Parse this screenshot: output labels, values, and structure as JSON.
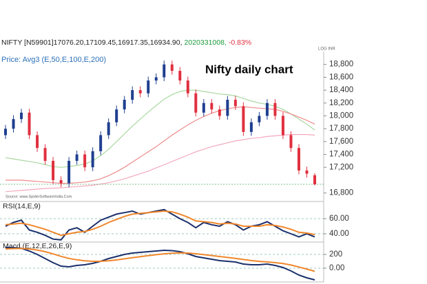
{
  "header": {
    "symbol": "NIFTY [N59901]17076.20,17109.45,16917.35,16934.90,",
    "volume": "2020331008,",
    "change": "-0.83%",
    "axis_note": "LOG INR",
    "source": "Source: www.SpiderSoftwareIndia.Com"
  },
  "chart_data": [
    {
      "type": "candlestick",
      "title": "Nifty daily chart",
      "subtitle": "Price: Avg3 (E,50,E,100,E,200)",
      "up_color": "#1f3f8f",
      "down_color": "#e0303f",
      "open": [
        17700,
        17800,
        17950,
        18050,
        17700,
        17500,
        17300,
        17000,
        16950,
        17300,
        17400,
        17200,
        17450,
        17700,
        17900,
        18100,
        18250,
        18400,
        18350,
        18550,
        18600,
        18800,
        18700,
        18550,
        18350,
        18050,
        18200,
        18100,
        18000,
        18250,
        18150,
        17750,
        17900,
        18000,
        18200,
        18000,
        17700,
        17500,
        17150,
        17076.2
      ],
      "high": [
        17860,
        18010,
        18110,
        18110,
        17760,
        17560,
        17360,
        17060,
        17360,
        17460,
        17460,
        17510,
        17760,
        17960,
        18160,
        18310,
        18460,
        18460,
        18610,
        18660,
        18860,
        18860,
        18760,
        18610,
        18410,
        18260,
        18260,
        18160,
        18310,
        18310,
        18210,
        17960,
        18060,
        18260,
        18260,
        18060,
        17760,
        17560,
        17210,
        17109.45
      ],
      "low": [
        17640,
        17740,
        17890,
        17640,
        17440,
        17240,
        16940,
        16890,
        16890,
        17240,
        17140,
        17140,
        17390,
        17640,
        17840,
        18040,
        18190,
        18290,
        18290,
        18490,
        18540,
        18640,
        18490,
        18290,
        17990,
        17990,
        18040,
        17940,
        17940,
        18090,
        17690,
        17690,
        17840,
        17940,
        17940,
        17640,
        17440,
        17090,
        17040,
        16917.35
      ],
      "close": [
        17800,
        17950,
        18050,
        17700,
        17500,
        17300,
        17000,
        16950,
        17300,
        17400,
        17200,
        17450,
        17700,
        17900,
        18100,
        18250,
        18400,
        18350,
        18550,
        18600,
        18800,
        18700,
        18550,
        18350,
        18050,
        18200,
        18100,
        18000,
        18250,
        18150,
        17750,
        17900,
        18000,
        18200,
        18000,
        17700,
        17500,
        17150,
        17100,
        16934.9
      ],
      "series": [
        {
          "name": "E,50",
          "color": "#a9d8a0",
          "values": [
            17350,
            17330,
            17310,
            17290,
            17270,
            17240,
            17210,
            17200,
            17210,
            17230,
            17250,
            17300,
            17380,
            17480,
            17600,
            17720,
            17840,
            17950,
            18060,
            18160,
            18260,
            18330,
            18380,
            18400,
            18400,
            18380,
            18360,
            18340,
            18330,
            18310,
            18270,
            18230,
            18200,
            18180,
            18150,
            18100,
            18030,
            17950,
            17870,
            17780
          ]
        },
        {
          "name": "E,100",
          "color": "#ee8a8a",
          "values": [
            17000,
            17000,
            17000,
            16990,
            16980,
            16970,
            16960,
            16950,
            16950,
            16960,
            16970,
            16990,
            17020,
            17070,
            17130,
            17200,
            17280,
            17360,
            17440,
            17520,
            17610,
            17700,
            17780,
            17860,
            17930,
            17990,
            18040,
            18080,
            18110,
            18130,
            18140,
            18130,
            18120,
            18110,
            18100,
            18070,
            18030,
            17980,
            17930,
            17870
          ]
        },
        {
          "name": "E,200",
          "color": "#f3a8bc",
          "values": [
            16820,
            16830,
            16840,
            16850,
            16860,
            16870,
            16875,
            16880,
            16890,
            16900,
            16910,
            16920,
            16940,
            16960,
            16990,
            17020,
            17060,
            17100,
            17140,
            17190,
            17240,
            17290,
            17340,
            17390,
            17440,
            17480,
            17520,
            17550,
            17580,
            17610,
            17630,
            17650,
            17660,
            17680,
            17690,
            17700,
            17710,
            17710,
            17710,
            17700
          ]
        }
      ],
      "ylim": [
        16700,
        19000
      ],
      "yticks": [
        {
          "value": 16800,
          "label": "16,800"
        },
        {
          "value": 17200,
          "label": "17,200"
        },
        {
          "value": 17400,
          "label": "17,400"
        },
        {
          "value": 17600,
          "label": "17,600"
        },
        {
          "value": 17800,
          "label": "17,800"
        },
        {
          "value": 18000,
          "label": "18,000"
        },
        {
          "value": 18200,
          "label": "18,200"
        },
        {
          "value": 18400,
          "label": "18,400"
        },
        {
          "value": 18600,
          "label": "18,600"
        },
        {
          "value": 18800,
          "label": "18,800"
        }
      ]
    },
    {
      "type": "line",
      "title": "RSI(14,E,9)",
      "series": [
        {
          "name": "RSI",
          "color": "#1a2f6b",
          "values": [
            50,
            55,
            58,
            45,
            42,
            38,
            33,
            32,
            45,
            48,
            42,
            50,
            58,
            62,
            66,
            68,
            70,
            66,
            68,
            70,
            72,
            66,
            60,
            55,
            48,
            55,
            52,
            50,
            56,
            52,
            45,
            50,
            52,
            56,
            50,
            44,
            40,
            36,
            40,
            36
          ]
        },
        {
          "name": "EMA",
          "color": "#f0862a",
          "values": [
            52,
            53,
            54,
            52,
            49,
            46,
            42,
            38,
            40,
            42,
            43,
            46,
            50,
            55,
            59,
            63,
            66,
            67,
            68,
            69,
            70,
            69,
            66,
            62,
            57,
            56,
            55,
            53,
            54,
            53,
            50,
            50,
            50,
            52,
            51,
            49,
            46,
            42,
            41,
            39
          ]
        }
      ],
      "ylim": [
        30,
        80
      ],
      "yticks": [
        {
          "value": 40,
          "label": "40.00"
        },
        {
          "value": 60,
          "label": "60.00"
        }
      ]
    },
    {
      "type": "line",
      "title": "Macd (E,12,E,26,E,9)",
      "series": [
        {
          "name": "MACD",
          "color": "#1a2f6b",
          "values": [
            300,
            300,
            290,
            250,
            200,
            140,
            80,
            30,
            20,
            40,
            50,
            70,
            100,
            140,
            170,
            200,
            220,
            230,
            240,
            250,
            260,
            255,
            240,
            210,
            170,
            150,
            130,
            110,
            100,
            90,
            60,
            50,
            50,
            60,
            40,
            10,
            -40,
            -100,
            -140,
            -170
          ]
        },
        {
          "name": "Signal",
          "color": "#f0862a",
          "values": [
            280,
            285,
            287,
            280,
            264,
            240,
            208,
            172,
            142,
            122,
            108,
            100,
            100,
            108,
            120,
            136,
            153,
            168,
            182,
            196,
            209,
            218,
            222,
            220,
            210,
            198,
            184,
            170,
            156,
            143,
            126,
            111,
            99,
            91,
            81,
            67,
            46,
            17,
            -14,
            -45
          ]
        }
      ],
      "ylim": [
        -200,
        370
      ],
      "yticks": [
        {
          "value": 0,
          "label": "0.00"
        },
        200
      ]
    }
  ]
}
